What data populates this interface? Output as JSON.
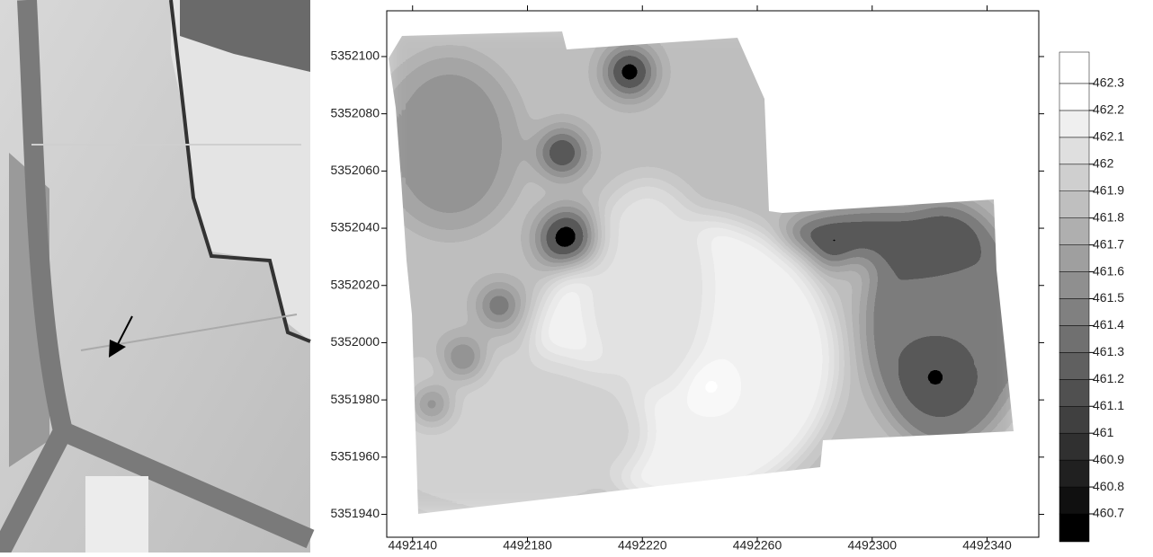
{
  "chart_data": {
    "type": "contour",
    "xlim": [
      4492131,
      4492358
    ],
    "ylim": [
      5351932,
      5352116
    ],
    "xticks": [
      4492140,
      4492180,
      4492220,
      4492260,
      4492300,
      4492340
    ],
    "yticks": [
      5351940,
      5351960,
      5351980,
      5352000,
      5352020,
      5352040,
      5352060,
      5352080,
      5352100
    ],
    "levels": [
      460.7,
      460.8,
      460.9,
      461,
      461.1,
      461.2,
      461.3,
      461.4,
      461.5,
      461.6,
      461.7,
      461.8,
      461.9,
      462,
      462.1,
      462.2,
      462.3
    ]
  }
}
